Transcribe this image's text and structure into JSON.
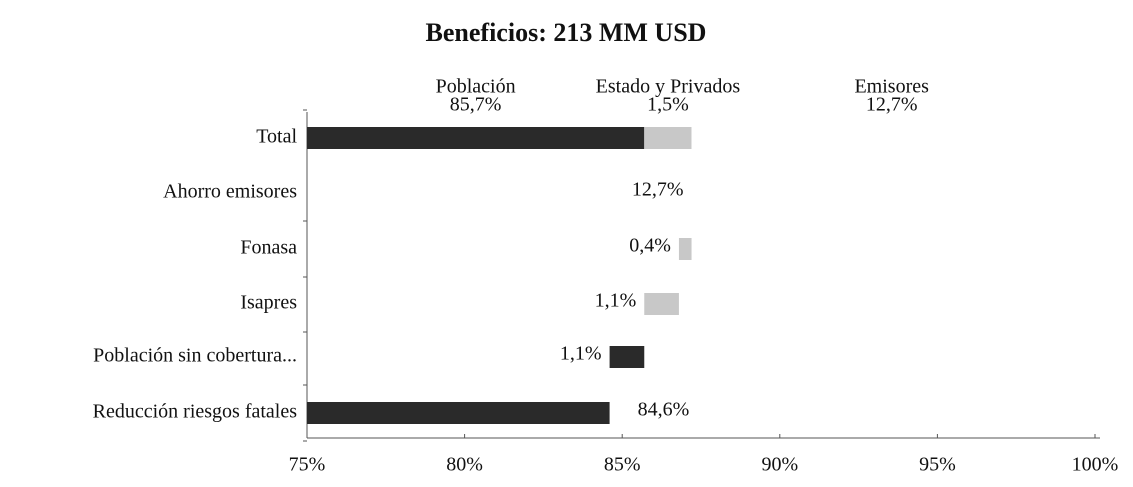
{
  "chart_data": {
    "type": "waterfall",
    "title": "Beneficios: 213 MM USD",
    "categories": [
      "Reducción riesgos fatales",
      "Población sin cobertura...",
      "Isapres",
      "Fonasa",
      "Ahorro emisores"
    ],
    "values": [
      84.6,
      1.1,
      1.1,
      0.4,
      12.7
    ],
    "value_labels": [
      "84,6%",
      "1,1%",
      "1,1%",
      "0,4%",
      "12,7%"
    ],
    "colors": [
      "#2a2a2a",
      "#2a2a2a",
      "#c8c8c8",
      "#c8c8c8",
      "#ffffff"
    ],
    "total": {
      "label": "Total",
      "segments": [
        {
          "name": "Población",
          "value": 85.7,
          "value_label": "85,7%",
          "color": "#2a2a2a"
        },
        {
          "name": "Estado y Privados",
          "value": 1.5,
          "value_label": "1,5%",
          "color": "#c8c8c8"
        },
        {
          "name": "Emisores",
          "value": 12.7,
          "value_label": "12,7%",
          "color": "#ffffff"
        }
      ]
    },
    "xlim": [
      75,
      100
    ],
    "xticks": [
      {
        "value": 75,
        "label": "75%"
      },
      {
        "value": 80,
        "label": "80%"
      },
      {
        "value": 85,
        "label": "85%"
      },
      {
        "value": 90,
        "label": "90%"
      },
      {
        "value": 95,
        "label": "95%"
      },
      {
        "value": 100,
        "label": "100%"
      }
    ]
  }
}
